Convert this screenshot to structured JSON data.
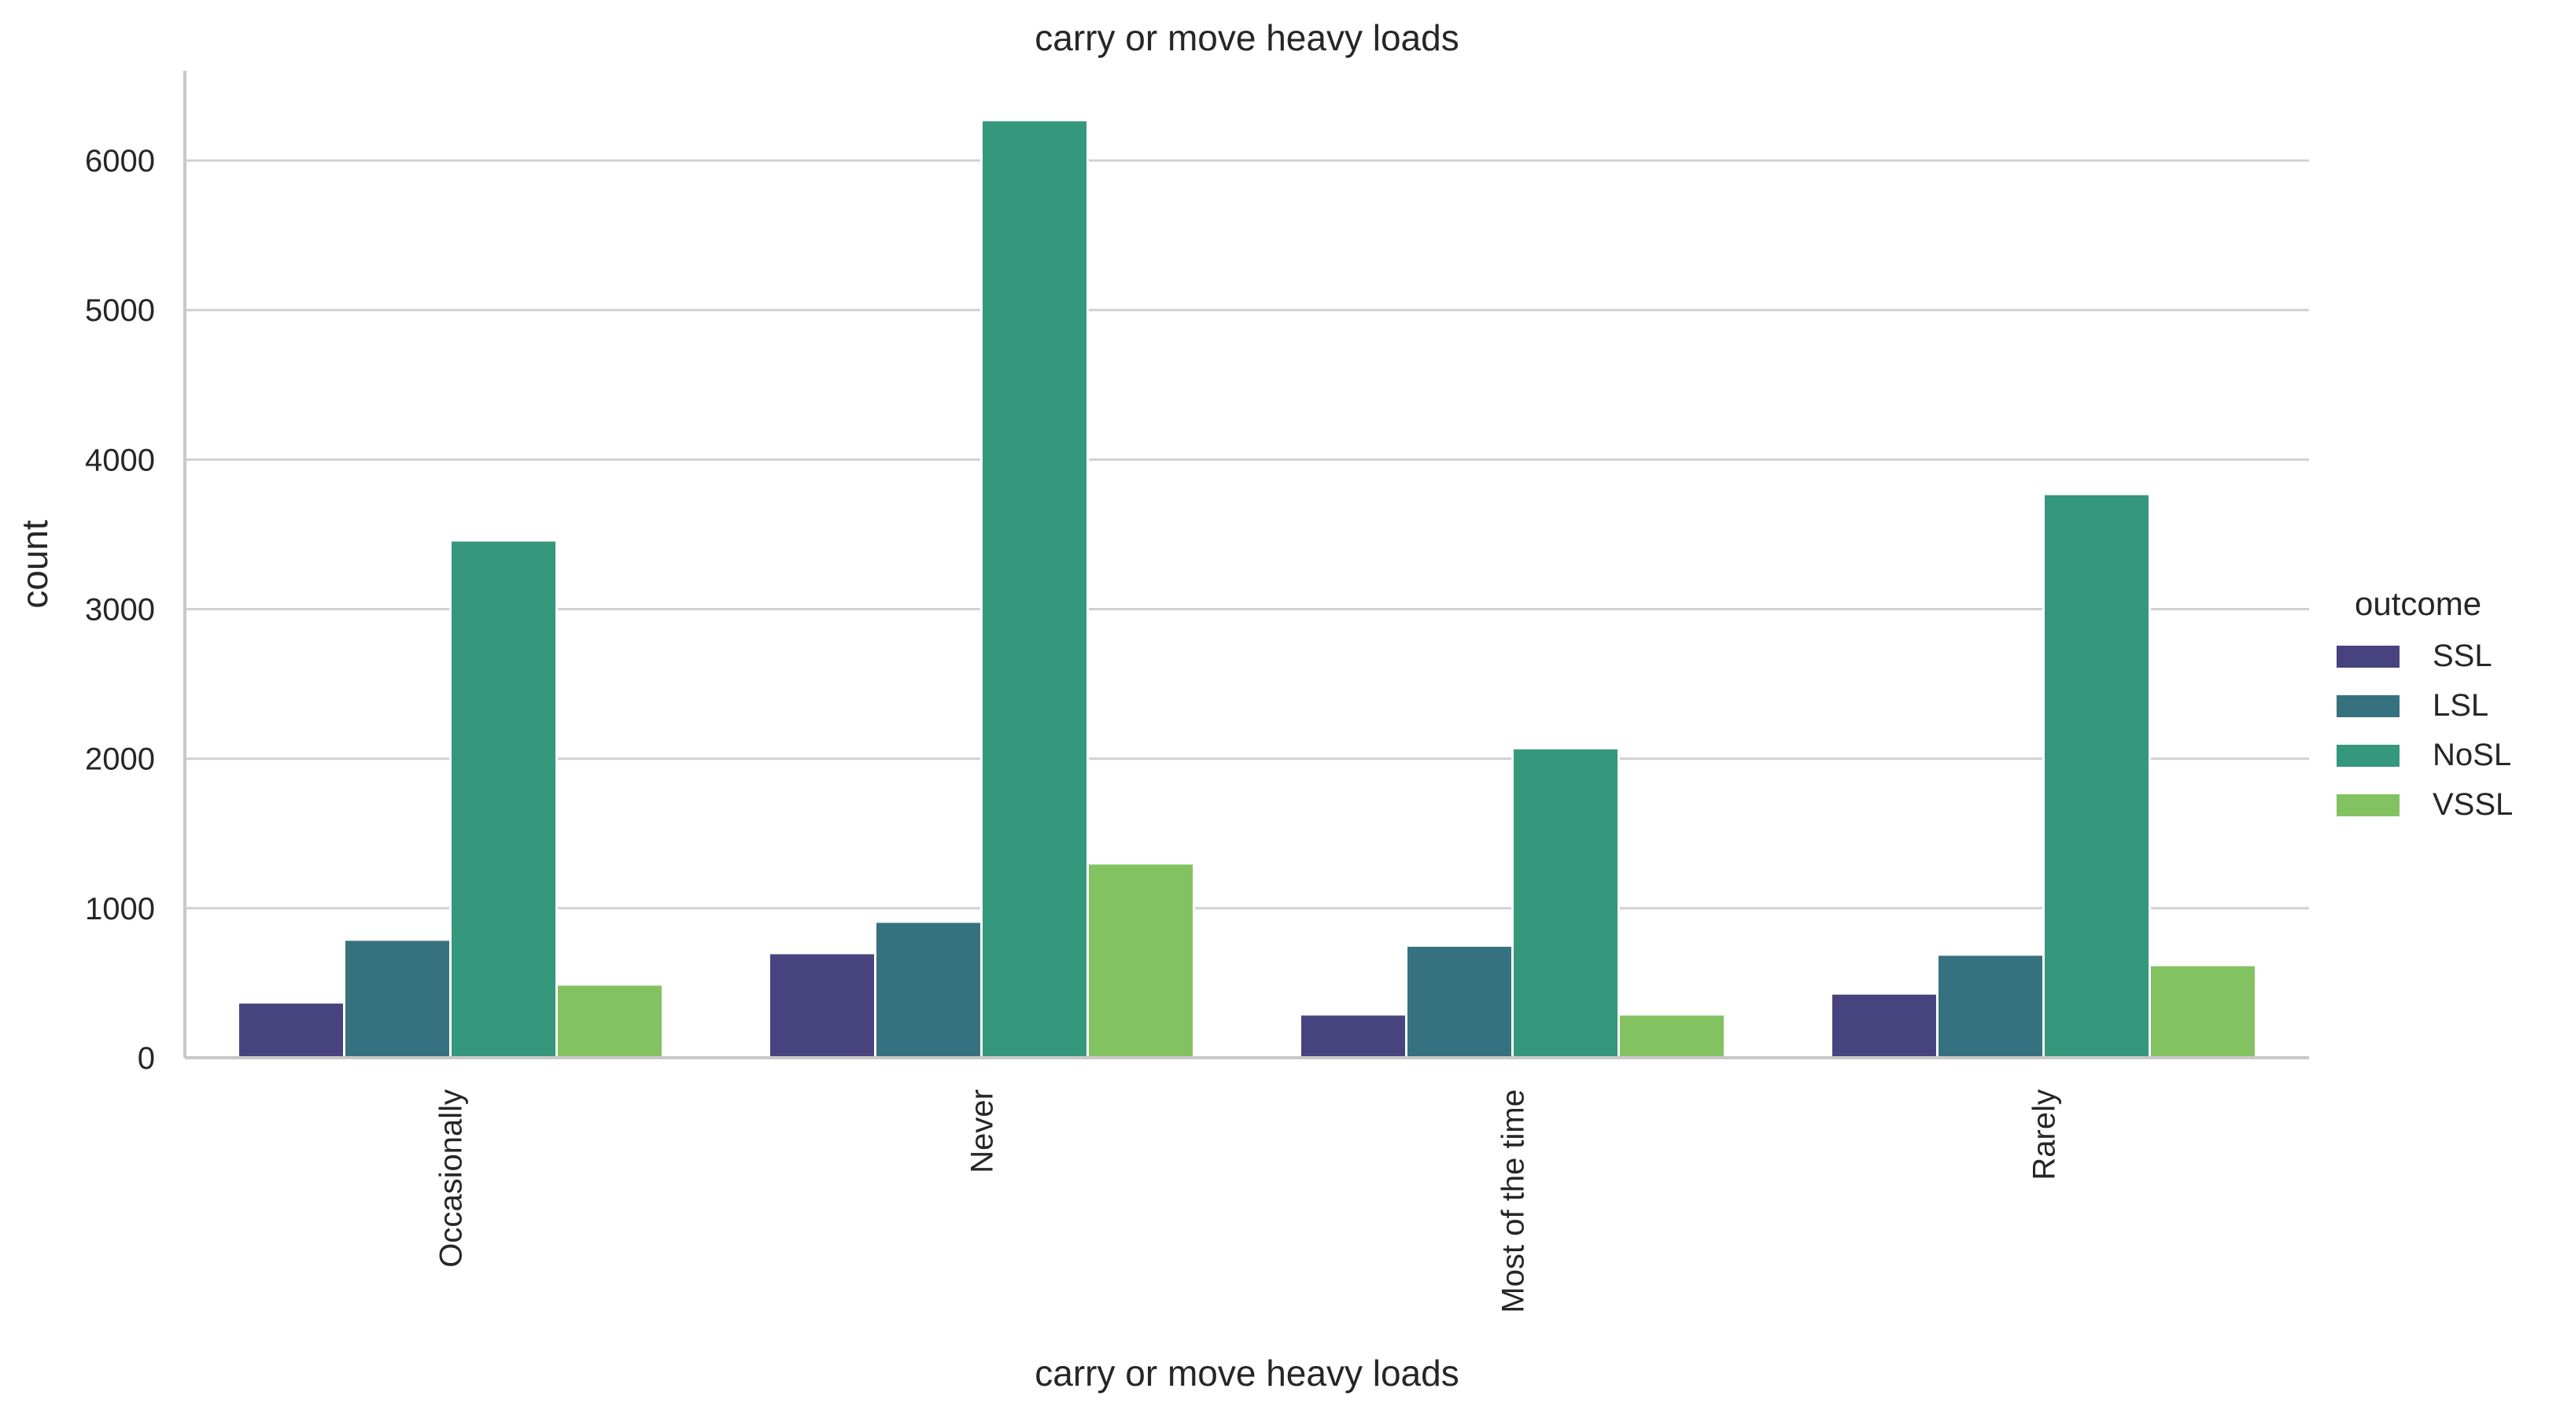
{
  "chart_data": {
    "type": "bar",
    "title": "carry or move heavy loads",
    "xlabel": "carry or move heavy loads",
    "ylabel": "count",
    "categories": [
      "Occasionally",
      "Never",
      "Most of the time",
      "Rarely"
    ],
    "series": [
      {
        "name": "SSL",
        "color": "#47437e",
        "values": [
          370,
          700,
          290,
          430
        ]
      },
      {
        "name": "LSL",
        "color": "#35717f",
        "values": [
          790,
          910,
          750,
          690
        ]
      },
      {
        "name": "NoSL",
        "color": "#35977b",
        "values": [
          3460,
          6270,
          2070,
          3770
        ]
      },
      {
        "name": "VSSL",
        "color": "#82c261",
        "values": [
          490,
          1300,
          290,
          620
        ]
      }
    ],
    "ylim": [
      0,
      6600
    ],
    "yticks": [
      0,
      1000,
      2000,
      3000,
      4000,
      5000,
      6000
    ],
    "grid": true,
    "legend": {
      "title": "outcome",
      "placement": "right"
    }
  }
}
